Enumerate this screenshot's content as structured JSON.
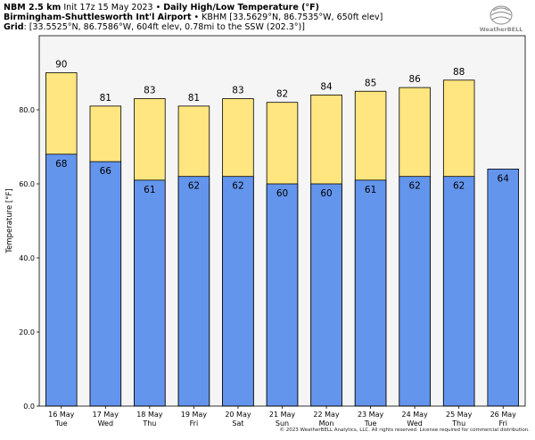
{
  "header": {
    "line1_bold": "NBM 2.5 km",
    "line1_text": " Init 17z 15 May 2023 • ",
    "line1_bold2": "Daily High/Low Temperature (°F)",
    "line2_bold": "Birmingham-Shuttlesworth Int'l Airport",
    "line2_text": " • KBHM [33.5629°N, 86.7535°W, 650ft elev]",
    "line3_bold": "Grid",
    "line3_text": ": [33.5525°N, 86.7586°W, 604ft elev, 0.78mi to the SSW (202.3°)]"
  },
  "logo": {
    "text": "WeatherBELL",
    "color": "#8a8a8a"
  },
  "copyright": "© 2023 WeatherBELL Analytics, LLC. All rights reserved. License required for commercial distribution.",
  "chart_data": {
    "type": "bar",
    "ylabel": "Temperature [°F]",
    "ylim": [
      0,
      100
    ],
    "yticks": [
      0,
      20,
      40,
      60,
      80
    ],
    "ytick_labels": [
      "0.0",
      "20.0",
      "40.0",
      "60.0",
      "80.0"
    ],
    "categories": [
      "16 May",
      "17 May",
      "18 May",
      "19 May",
      "20 May",
      "21 May",
      "22 May",
      "23 May",
      "24 May",
      "25 May",
      "26 May"
    ],
    "day_names": [
      "Tue",
      "Wed",
      "Thu",
      "Fri",
      "Sat",
      "Sun",
      "Mon",
      "Tue",
      "Wed",
      "Thu",
      "Fri"
    ],
    "series": [
      {
        "name": "High",
        "color": "#ffe680",
        "values": [
          90,
          81,
          83,
          81,
          83,
          82,
          84,
          85,
          86,
          88,
          null
        ]
      },
      {
        "name": "Low",
        "color": "#6495ed",
        "values": [
          68,
          66,
          61,
          62,
          62,
          60,
          60,
          61,
          62,
          62,
          64
        ]
      }
    ],
    "grid": false,
    "background": "#f5f5f5"
  }
}
